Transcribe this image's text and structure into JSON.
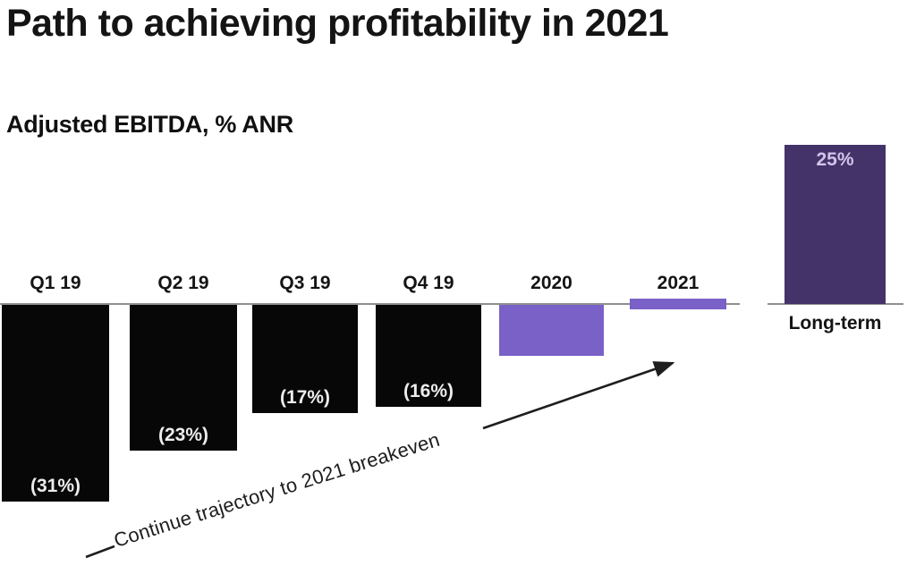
{
  "header": {
    "title": "Path to achieving profitability in 2021",
    "subtitle": "Adjusted EBITDA, % ANR"
  },
  "chart_data": {
    "type": "bar",
    "title": "Path to achieving profitability in 2021",
    "ylabel": "Adjusted EBITDA, % ANR",
    "categories": [
      "Q1 19",
      "Q2 19",
      "Q3 19",
      "Q4 19",
      "2020",
      "2021",
      "Long-term"
    ],
    "values": [
      -31,
      -23,
      -17,
      -16,
      -8,
      0,
      25
    ],
    "value_labels": [
      "(31%)",
      "(23%)",
      "(17%)",
      "(16%)",
      "",
      "",
      "25%"
    ],
    "annotation": "Continue trajectory to 2021 breakeven",
    "grid": false,
    "legend": false,
    "notes": "2020 and 2021 bars are unlabeled; 2020 is approximately -8% (estimated from bar height), 2021 is approximately 0% (breakeven, thin bar straddling axis)",
    "colors": {
      "historical_bar": "#070707",
      "forecast_bar": "#7a61c8",
      "longterm_bar": "#443369",
      "axis": "#8f8f8f",
      "label_on_black": "#ededed",
      "label_on_longterm": "#cfc5ea",
      "text": "#141414"
    },
    "bars": [
      {
        "category": "Q1 19",
        "value": -31,
        "label": "(31%)",
        "color": "#070707"
      },
      {
        "category": "Q2 19",
        "value": -23,
        "label": "(23%)",
        "color": "#070707"
      },
      {
        "category": "Q3 19",
        "value": -17,
        "label": "(17%)",
        "color": "#070707"
      },
      {
        "category": "Q4 19",
        "value": -16,
        "label": "(16%)",
        "color": "#070707"
      },
      {
        "category": "2020",
        "value": -8,
        "label": "",
        "color": "#7a61c8",
        "estimated": true
      },
      {
        "category": "2021",
        "value": 0,
        "label": "",
        "color": "#7a61c8",
        "breakeven": true
      },
      {
        "category": "Long-term",
        "value": 25,
        "label": "25%",
        "color": "#443369"
      }
    ]
  }
}
